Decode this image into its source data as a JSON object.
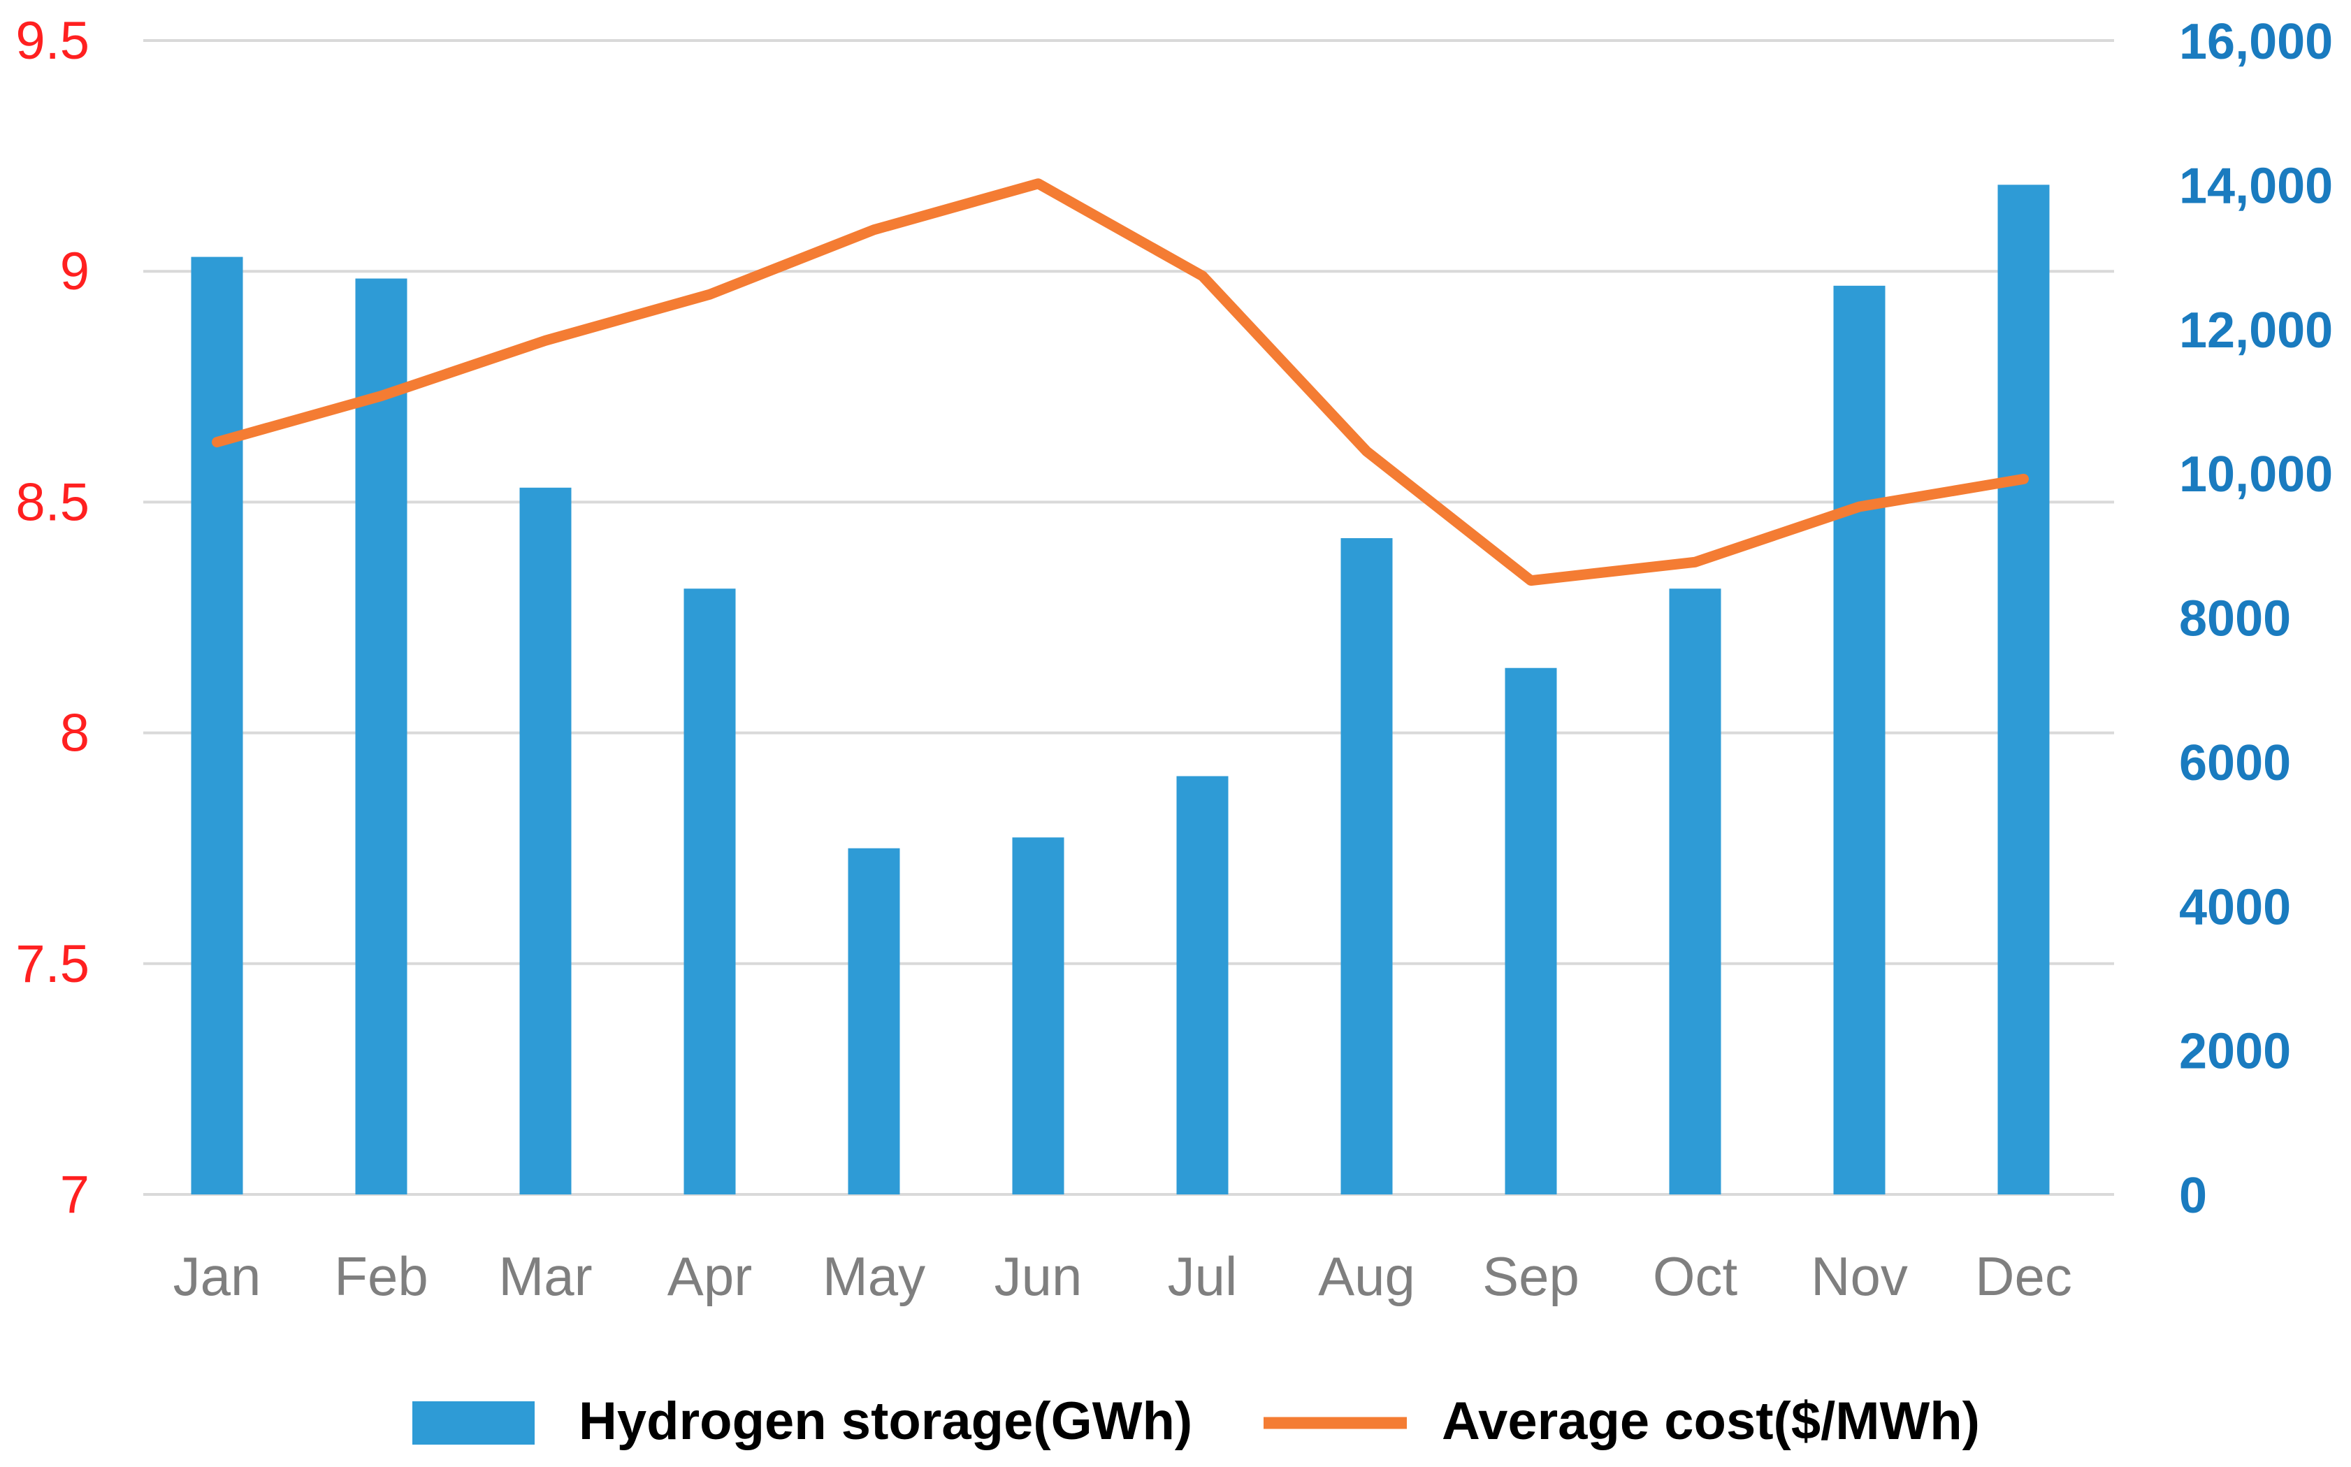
{
  "chart_data": {
    "type": "bar+line",
    "categories": [
      "Jan",
      "Feb",
      "Mar",
      "Apr",
      "May",
      "Jun",
      "Jul",
      "Aug",
      "Sep",
      "Oct",
      "Nov",
      "Dec"
    ],
    "series": [
      {
        "name": "Hydrogen storage(GWh)",
        "type": "bar",
        "axis": "right",
        "color": "#2e9bd6",
        "values": [
          13000,
          12700,
          9800,
          8400,
          4800,
          4950,
          5800,
          9100,
          7300,
          8400,
          12600,
          14000
        ]
      },
      {
        "name": "Average cost($/MWh)",
        "type": "line",
        "axis": "left",
        "color": "#f47c33",
        "values": [
          8.63,
          8.73,
          8.85,
          8.95,
          9.09,
          9.19,
          8.99,
          8.61,
          8.33,
          8.37,
          8.49,
          8.55
        ]
      }
    ],
    "left_axis": {
      "min": 7,
      "max": 9.5,
      "ticks": [
        "7",
        "7.5",
        "8",
        "8.5",
        "9",
        "9.5"
      ],
      "color": "#ff2020"
    },
    "right_axis": {
      "min": 0,
      "max": 16000,
      "ticks": [
        "0",
        "2000",
        "4000",
        "6000",
        "8000",
        "10,000",
        "12,000",
        "14,000",
        "16,000"
      ],
      "color": "#1a7bbf"
    },
    "grid": true,
    "legend_position": "bottom"
  }
}
